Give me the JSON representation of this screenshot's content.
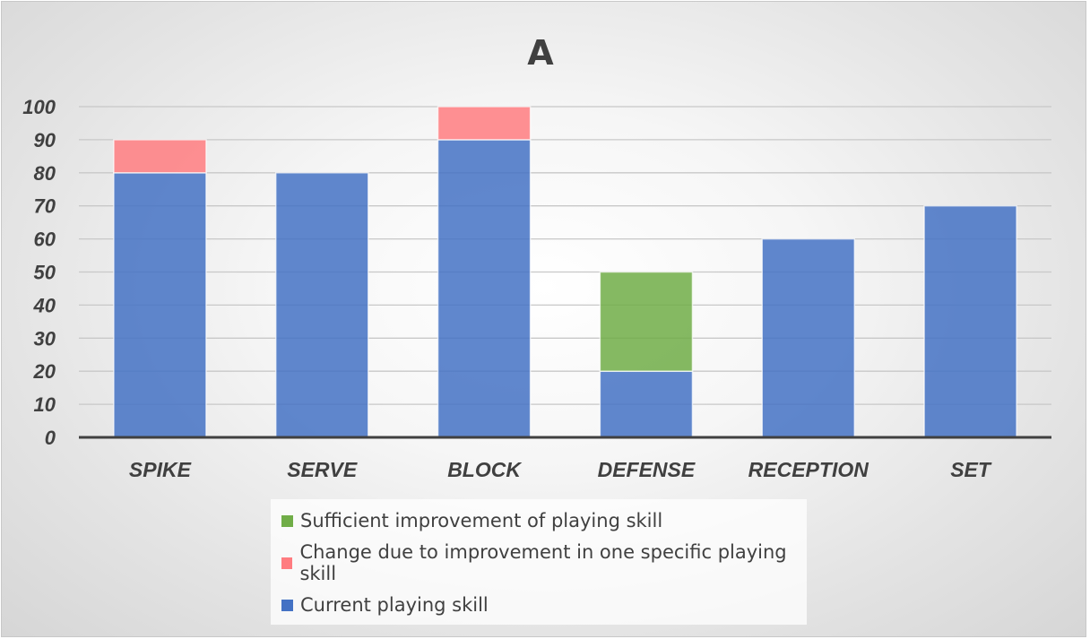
{
  "chart_data": {
    "type": "bar",
    "stacked": true,
    "title": "A",
    "xlabel": "",
    "ylabel": "",
    "categories": [
      "SPIKE",
      "SERVE",
      "BLOCK",
      "DEFENSE",
      "RECEPTION",
      "SET"
    ],
    "ylim": [
      0,
      100
    ],
    "yticks": [
      0,
      10,
      20,
      30,
      40,
      50,
      60,
      70,
      80,
      90,
      100
    ],
    "grid": true,
    "legend_position": "bottom",
    "series": [
      {
        "name": "Current playing skill",
        "color": "#4472C4",
        "values": [
          80,
          80,
          90,
          20,
          60,
          70
        ]
      },
      {
        "name": "Change due to improvement in one specific playing skill",
        "color": "#FF7C80",
        "values": [
          10,
          0,
          10,
          0,
          0,
          0
        ]
      },
      {
        "name": "Sufficient improvement of playing skill",
        "color": "#70AD47",
        "values": [
          0,
          0,
          0,
          30,
          0,
          0
        ]
      }
    ],
    "legend_order": [
      2,
      1,
      0
    ]
  }
}
